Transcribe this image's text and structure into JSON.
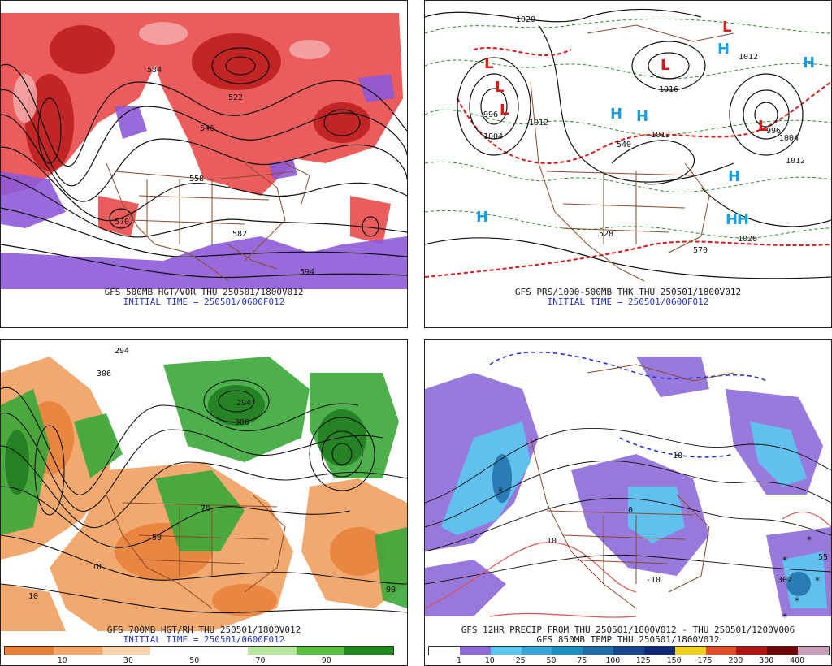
{
  "panels": {
    "tl": {
      "caption1": "GFS 500MB HGT/VOR THU 250501/1800V012",
      "caption2": "INITIAL TIME = 250501/0600F012",
      "contour_labels": [
        "534",
        "522",
        "546",
        "558",
        "570",
        "582",
        "594"
      ]
    },
    "tr": {
      "caption1": "GFS PRS/1000-500MB THK THU 250501/1800V012",
      "caption2": "INITIAL TIME = 250501/0600F012",
      "contour_labels": [
        "1020",
        "996",
        "1004",
        "1012",
        "1016",
        "1012",
        "1020",
        "1012",
        "1012",
        "1004",
        "996",
        "540",
        "528",
        "570"
      ],
      "highs": [
        "H",
        "H",
        "H",
        "H",
        "H",
        "H",
        "H",
        "H"
      ],
      "lows": [
        "L",
        "L",
        "L",
        "L",
        "L",
        "L"
      ]
    },
    "bl": {
      "caption1": "GFS 700MB HGT/RH THU 250501/1800V012",
      "caption2": "INITIAL TIME = 250501/0600F012",
      "colorbar_labels": [
        "10",
        "30",
        "50",
        "70",
        "90"
      ],
      "colorbar_colors": [
        "#e8803a",
        "#f2a868",
        "#f8d2aa",
        "#ffffff",
        "#ffffff",
        "#b8e8a0",
        "#5cc040",
        "#1e8a1e"
      ],
      "contour_labels": [
        "294",
        "306",
        "294",
        "306",
        "50",
        "10",
        "70",
        "90",
        "10"
      ]
    },
    "br": {
      "caption1": "GFS 12HR PRECIP FROM THU 250501/1800V012 - THU 250501/1200V006",
      "caption2": "GFS 850MB TEMP THU 250501/1800V012",
      "colorbar_labels": [
        "1",
        "10",
        "25",
        "50",
        "75",
        "100",
        "125",
        "150",
        "175",
        "200",
        "300",
        "400"
      ],
      "colorbar_colors": [
        "#ffffff",
        "#8d6ad8",
        "#5bc8f0",
        "#35a8d8",
        "#1b8fc0",
        "#1f6ea8",
        "#17488e",
        "#0f2a78",
        "#f0d020",
        "#e05028",
        "#b01818",
        "#700808",
        "#c8a0b8"
      ],
      "contour_labels": [
        "10",
        "0",
        "-10",
        "10",
        "302",
        "55"
      ]
    }
  }
}
